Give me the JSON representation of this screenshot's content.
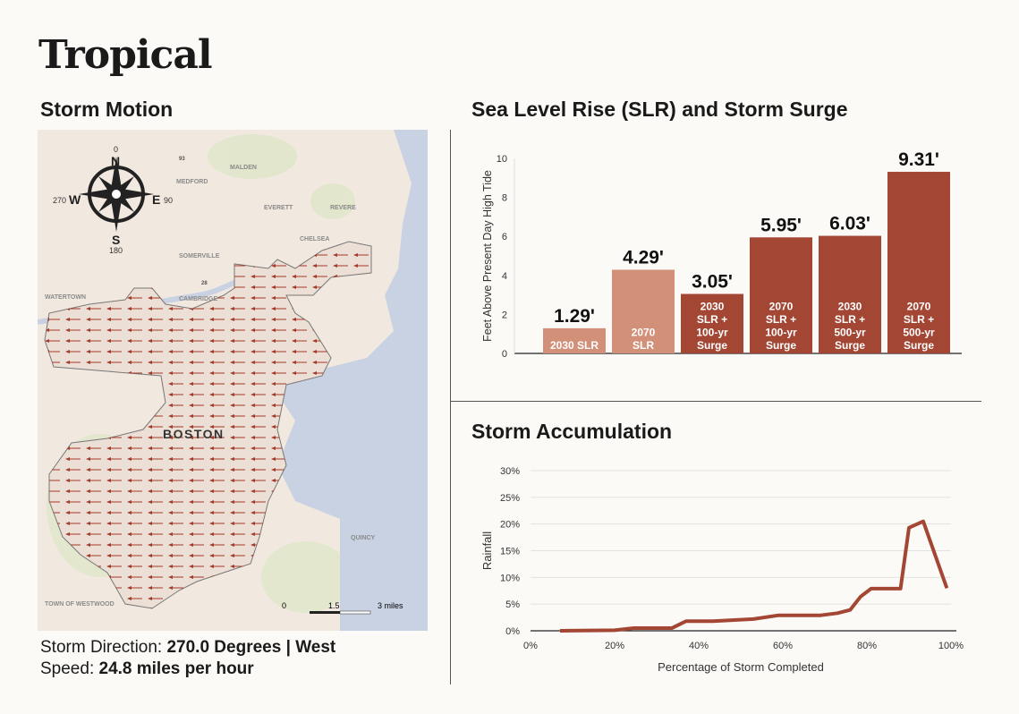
{
  "title": "Tropical",
  "storm_motion": {
    "heading": "Storm Motion",
    "map_labels": {
      "malden": "MALDEN",
      "medford": "MEDFORD",
      "everett": "EVERETT",
      "revere": "REVERE",
      "chelsea": "CHELSEA",
      "somerville": "SOMERVILLE",
      "cambridge": "CAMBRIDGE",
      "watertown": "WATERTOWN",
      "boston": "BOSTON",
      "quincy": "QUINCY",
      "westwood": "TOWN OF WESTWOOD",
      "i93": "93",
      "r28": "28"
    },
    "compass": {
      "n": "N",
      "s": "S",
      "e": "E",
      "w": "W",
      "n_deg": "0",
      "s_deg": "180",
      "e_deg": "90",
      "w_deg": "270"
    },
    "scale": {
      "t0": "0",
      "t1": "1.5",
      "t2": "3 miles"
    },
    "arrow_direction": "west",
    "direction_label": "Storm Direction: ",
    "direction_value": "270.0 Degrees",
    "sep": " | ",
    "direction_name": "West",
    "speed_label": "Speed: ",
    "speed_value": "24.8 miles per hour",
    "colors": {
      "arrow": "#a33a2a",
      "water": "#c9d2e2",
      "land": "#f1e9e0"
    }
  },
  "chart_data": [
    {
      "type": "bar",
      "title": "Sea Level Rise (SLR) and Storm Surge",
      "ylabel": "Feet Above Present Day High Tide",
      "ylim": [
        0,
        10
      ],
      "yticks": [
        "0",
        "2",
        "4",
        "6",
        "8",
        "10"
      ],
      "categories": [
        [
          "2030 SLR"
        ],
        [
          "2070",
          "SLR"
        ],
        [
          "2030",
          "SLR +",
          "100-yr",
          "Surge"
        ],
        [
          "2070",
          "SLR +",
          "100-yr",
          "Surge"
        ],
        [
          "2030",
          "SLR +",
          "500-yr",
          "Surge"
        ],
        [
          "2070",
          "SLR +",
          "500-yr",
          "Surge"
        ]
      ],
      "values": [
        1.29,
        4.29,
        3.05,
        5.95,
        6.03,
        9.31
      ],
      "labels": [
        "1.29'",
        "4.29'",
        "3.05'",
        "5.95'",
        "6.03'",
        "9.31'"
      ],
      "colors": [
        "#d29079",
        "#d29079",
        "#a34634",
        "#a34634",
        "#a34634",
        "#a34634"
      ]
    },
    {
      "type": "line",
      "title": "Storm Accumulation",
      "xlabel": "Percentage of Storm Completed",
      "ylabel": "Rainfall",
      "xlim": [
        0,
        100
      ],
      "ylim": [
        0,
        30
      ],
      "xticks": [
        "0%",
        "20%",
        "40%",
        "60%",
        "80%",
        "100%"
      ],
      "yticks": [
        "0%",
        "5%",
        "10%",
        "15%",
        "20%",
        "25%",
        "30%"
      ],
      "grid": true,
      "color": "#a34634",
      "x": [
        7,
        20,
        24.5,
        33.6,
        37,
        43.4,
        53,
        59,
        69,
        73,
        76,
        78.5,
        81,
        88,
        90,
        93.4,
        99
      ],
      "y": [
        0,
        0.1,
        0.5,
        0.5,
        1.8,
        1.8,
        2.2,
        2.9,
        2.9,
        3.3,
        3.9,
        6.4,
        7.9,
        7.9,
        19.3,
        20.5,
        8
      ]
    }
  ]
}
